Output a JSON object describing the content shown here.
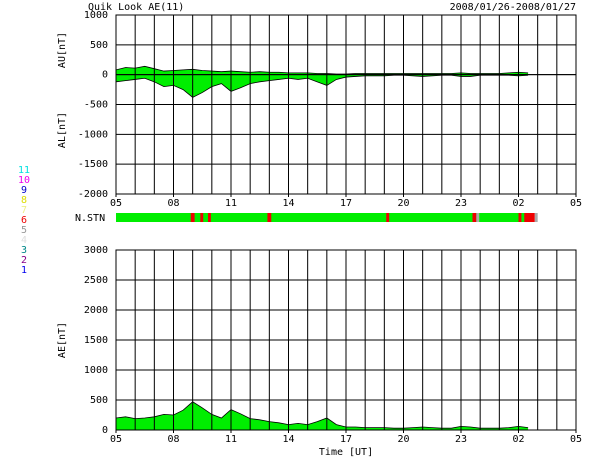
{
  "chart_data": [
    {
      "type": "area",
      "title": "Quik Look AE(11)",
      "date_range": "2008/01/26-2008/01/27",
      "ylabels": [
        "AU[nT]",
        "AL[nT]"
      ],
      "x": [
        0,
        0.5,
        1,
        1.5,
        2,
        2.5,
        3,
        3.5,
        4,
        4.5,
        5,
        5.5,
        6,
        6.5,
        7,
        7.5,
        8,
        8.5,
        9,
        9.5,
        10,
        10.5,
        11,
        11.5,
        12,
        12.5,
        13,
        13.5,
        14,
        14.5,
        15,
        15.5,
        16,
        16.5,
        17,
        17.5,
        18,
        18.5,
        19,
        19.5,
        20,
        20.5,
        21,
        21.5
      ],
      "series": [
        {
          "name": "AU",
          "color": "#00ee00",
          "values": [
            80,
            120,
            110,
            140,
            100,
            60,
            70,
            80,
            90,
            70,
            60,
            50,
            60,
            50,
            40,
            50,
            40,
            40,
            30,
            30,
            30,
            20,
            20,
            10,
            10,
            20,
            20,
            20,
            20,
            20,
            20,
            20,
            20,
            20,
            20,
            20,
            30,
            20,
            20,
            20,
            20,
            30,
            40,
            30
          ]
        },
        {
          "name": "AL",
          "color": "#00ee00",
          "values": [
            -120,
            -100,
            -80,
            -60,
            -120,
            -200,
            -180,
            -250,
            -380,
            -300,
            -200,
            -150,
            -280,
            -220,
            -150,
            -120,
            -100,
            -80,
            -60,
            -80,
            -60,
            -120,
            -180,
            -80,
            -40,
            -30,
            -20,
            -20,
            -20,
            -10,
            -10,
            -20,
            -30,
            -20,
            -10,
            -10,
            -30,
            -30,
            -10,
            -10,
            -10,
            -10,
            -20,
            -10
          ]
        }
      ],
      "xlim": [
        0,
        24
      ],
      "xticks": [
        {
          "value": 0,
          "label": "05"
        },
        {
          "value": 3,
          "label": "08"
        },
        {
          "value": 6,
          "label": "11"
        },
        {
          "value": 9,
          "label": "14"
        },
        {
          "value": 12,
          "label": "17"
        },
        {
          "value": 15,
          "label": "20"
        },
        {
          "value": 18,
          "label": "23"
        },
        {
          "value": 21,
          "label": "02"
        },
        {
          "value": 24,
          "label": "05"
        }
      ],
      "xgrid": [
        0,
        1,
        2,
        3,
        4,
        5,
        6,
        7,
        8,
        9,
        10,
        11,
        12,
        13,
        14,
        15,
        16,
        17,
        18,
        19,
        20,
        21,
        22,
        23,
        24
      ],
      "ylim": [
        -2000,
        1000
      ],
      "yticks": [
        -2000,
        -1500,
        -1000,
        -500,
        0,
        500,
        1000
      ]
    },
    {
      "type": "stations",
      "label": "N.STN",
      "segments": [
        {
          "start": 0,
          "end": 21.7,
          "color": "#00ee00"
        },
        {
          "start": 3.9,
          "end": 4.1,
          "color": "#ee0000"
        },
        {
          "start": 4.4,
          "end": 4.55,
          "color": "#ee0000"
        },
        {
          "start": 4.8,
          "end": 4.95,
          "color": "#ee0000"
        },
        {
          "start": 7.9,
          "end": 8.1,
          "color": "#ee0000"
        },
        {
          "start": 14.1,
          "end": 14.25,
          "color": "#ee0000"
        },
        {
          "start": 18.6,
          "end": 18.8,
          "color": "#ee0000"
        },
        {
          "start": 18.8,
          "end": 18.95,
          "color": "#aaaaaa"
        },
        {
          "start": 21.0,
          "end": 21.15,
          "color": "#ee0000"
        },
        {
          "start": 21.3,
          "end": 21.85,
          "color": "#ee0000"
        },
        {
          "start": 21.85,
          "end": 22.0,
          "color": "#aaaaaa"
        }
      ],
      "legend": [
        {
          "label": "11",
          "color": "#00e0e0"
        },
        {
          "label": "10",
          "color": "#ee00ee"
        },
        {
          "label": "9",
          "color": "#0000cc"
        },
        {
          "label": "8",
          "color": "#dddd00"
        },
        {
          "label": "7",
          "color": "#eeee88"
        },
        {
          "label": "6",
          "color": "#ee0000"
        },
        {
          "label": "5",
          "color": "#999999"
        },
        {
          "label": "4",
          "color": "#dddddd"
        },
        {
          "label": "3",
          "color": "#008888"
        },
        {
          "label": "2",
          "color": "#880088"
        },
        {
          "label": "1",
          "color": "#0000ee"
        }
      ]
    },
    {
      "type": "area",
      "ylabel": "AE[nT]",
      "xlabel": "Time [UT]",
      "x": [
        0,
        0.5,
        1,
        1.5,
        2,
        2.5,
        3,
        3.5,
        4,
        4.5,
        5,
        5.5,
        6,
        6.5,
        7,
        7.5,
        8,
        8.5,
        9,
        9.5,
        10,
        10.5,
        11,
        11.5,
        12,
        12.5,
        13,
        13.5,
        14,
        14.5,
        15,
        15.5,
        16,
        16.5,
        17,
        17.5,
        18,
        18.5,
        19,
        19.5,
        20,
        20.5,
        21,
        21.5
      ],
      "series": [
        {
          "name": "AE",
          "color": "#00ee00",
          "values": [
            200,
            220,
            190,
            200,
            220,
            260,
            250,
            330,
            470,
            370,
            260,
            200,
            340,
            270,
            190,
            170,
            140,
            120,
            90,
            110,
            90,
            140,
            200,
            90,
            50,
            50,
            40,
            40,
            40,
            30,
            30,
            40,
            50,
            40,
            30,
            30,
            60,
            50,
            30,
            30,
            30,
            40,
            60,
            40
          ]
        }
      ],
      "xlim": [
        0,
        24
      ],
      "xticks": [
        {
          "value": 0,
          "label": "05"
        },
        {
          "value": 3,
          "label": "08"
        },
        {
          "value": 6,
          "label": "11"
        },
        {
          "value": 9,
          "label": "14"
        },
        {
          "value": 12,
          "label": "17"
        },
        {
          "value": 15,
          "label": "20"
        },
        {
          "value": 18,
          "label": "23"
        },
        {
          "value": 21,
          "label": "02"
        },
        {
          "value": 24,
          "label": "05"
        }
      ],
      "xgrid": [
        0,
        1,
        2,
        3,
        4,
        5,
        6,
        7,
        8,
        9,
        10,
        11,
        12,
        13,
        14,
        15,
        16,
        17,
        18,
        19,
        20,
        21,
        22,
        23,
        24
      ],
      "ylim": [
        0,
        3000
      ],
      "yticks": [
        0,
        500,
        1000,
        1500,
        2000,
        2500,
        3000
      ]
    }
  ]
}
